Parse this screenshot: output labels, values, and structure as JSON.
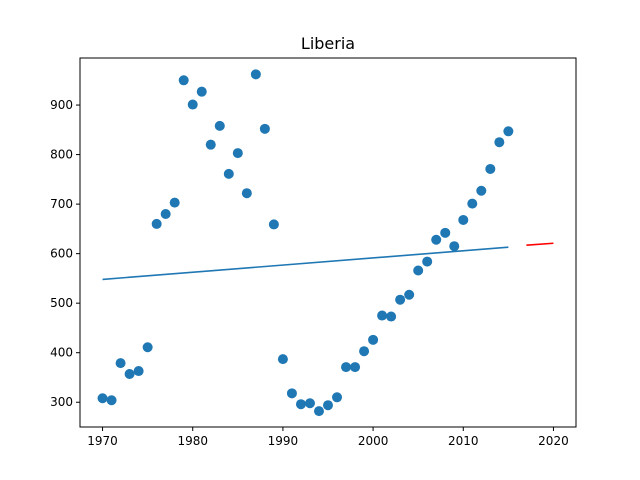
{
  "chart_data": {
    "type": "scatter",
    "title": "Liberia",
    "xlabel": "",
    "ylabel": "",
    "xlim": [
      1967.5,
      2022.5
    ],
    "ylim": [
      250,
      995
    ],
    "xticks": [
      1970,
      1980,
      1990,
      2000,
      2010,
      2020
    ],
    "yticks": [
      300,
      400,
      500,
      600,
      700,
      800,
      900
    ],
    "grid": false,
    "colors": {
      "points": "#1f77b4",
      "fit": "#1f77b4",
      "forecast": "#ff0000"
    },
    "series": [
      {
        "kind": "points",
        "x": [
          1970,
          1971,
          1972,
          1973,
          1974,
          1975,
          1976,
          1977,
          1978,
          1979,
          1980,
          1981,
          1982,
          1983,
          1984,
          1985,
          1986,
          1987,
          1988,
          1989,
          1990,
          1991,
          1992,
          1993,
          1994,
          1995,
          1996,
          1997,
          1998,
          1999,
          2000,
          2001,
          2002,
          2003,
          2004,
          2005,
          2006,
          2007,
          2008,
          2009,
          2010,
          2011,
          2012,
          2013,
          2014,
          2015
        ],
        "y": [
          308,
          304,
          379,
          357,
          363,
          411,
          660,
          680,
          703,
          950,
          901,
          927,
          820,
          858,
          761,
          803,
          722,
          962,
          852,
          659,
          387,
          318,
          296,
          298,
          282,
          294,
          310,
          371,
          371,
          403,
          426,
          475,
          473,
          507,
          517,
          566,
          584,
          628,
          642,
          615,
          668,
          701,
          727,
          771,
          825,
          847
        ]
      },
      {
        "kind": "fit-line",
        "x": [
          1970,
          2015
        ],
        "y": [
          548,
          613
        ]
      },
      {
        "kind": "forecast-line",
        "x": [
          2017,
          2020
        ],
        "y": [
          617,
          621
        ]
      }
    ]
  }
}
